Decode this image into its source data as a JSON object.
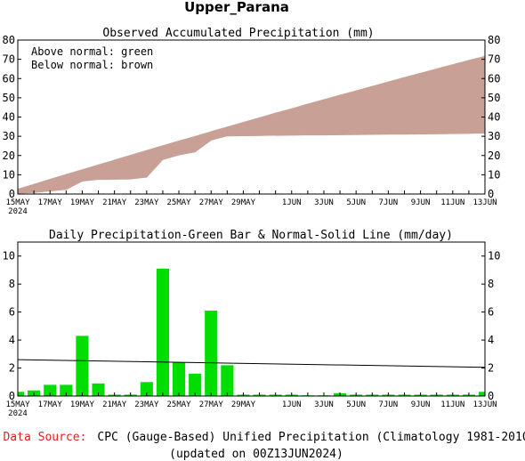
{
  "header": {
    "region_title": "Upper_Parana"
  },
  "chart_data": [
    {
      "type": "area",
      "title": "Observed Accumulated Precipitation (mm)",
      "annotations": [
        "Above normal: green",
        "Below normal: brown"
      ],
      "x": [
        "15MAY",
        "16MAY",
        "17MAY",
        "18MAY",
        "19MAY",
        "20MAY",
        "21MAY",
        "22MAY",
        "23MAY",
        "24MAY",
        "25MAY",
        "26MAY",
        "27MAY",
        "28MAY",
        "29MAY",
        "30MAY",
        "31MAY",
        "1JUN",
        "2JUN",
        "3JUN",
        "4JUN",
        "5JUN",
        "6JUN",
        "7JUN",
        "8JUN",
        "9JUN",
        "10JUN",
        "11JUN",
        "12JUN",
        "13JUN"
      ],
      "x_tick_labels": [
        "15MAY",
        "17MAY",
        "19MAY",
        "21MAY",
        "23MAY",
        "25MAY",
        "27MAY",
        "29MAY",
        "1JUN",
        "3JUN",
        "5JUN",
        "7JUN",
        "9JUN",
        "11JUN",
        "13JUN"
      ],
      "x_year_label": "2024",
      "ylim": [
        0,
        80
      ],
      "yticks": [
        0,
        10,
        20,
        30,
        40,
        50,
        60,
        70,
        80
      ],
      "legend_position": "top-left",
      "colors": {
        "above_normal": "#00cc00",
        "below_normal": "#c8a095"
      },
      "series": [
        {
          "name": "observed",
          "values": [
            0.3,
            0.7,
            1.5,
            2.3,
            6.6,
            7.5,
            7.6,
            7.7,
            8.7,
            17.8,
            20.2,
            21.8,
            27.9,
            30.1,
            30.2,
            30.3,
            30.4,
            30.5,
            30.6,
            30.6,
            30.7,
            30.8,
            30.9,
            31.0,
            31.0,
            31.1,
            31.2,
            31.3,
            31.4,
            31.6
          ]
        },
        {
          "name": "normal",
          "values": [
            2.6,
            5.1,
            7.7,
            10.2,
            12.7,
            15.2,
            17.7,
            20.2,
            22.7,
            25.2,
            27.6,
            30.0,
            32.5,
            34.9,
            37.3,
            39.7,
            42.1,
            44.4,
            46.8,
            49.1,
            51.4,
            53.7,
            56.0,
            58.3,
            60.6,
            62.8,
            65.1,
            67.3,
            69.5,
            71.6
          ]
        }
      ]
    },
    {
      "type": "bar",
      "title": "Daily Precipitation-Green Bar & Normal-Solid Line (mm/day)",
      "x": [
        "15MAY",
        "16MAY",
        "17MAY",
        "18MAY",
        "19MAY",
        "20MAY",
        "21MAY",
        "22MAY",
        "23MAY",
        "24MAY",
        "25MAY",
        "26MAY",
        "27MAY",
        "28MAY",
        "29MAY",
        "30MAY",
        "31MAY",
        "1JUN",
        "2JUN",
        "3JUN",
        "4JUN",
        "5JUN",
        "6JUN",
        "7JUN",
        "8JUN",
        "9JUN",
        "10JUN",
        "11JUN",
        "12JUN",
        "13JUN"
      ],
      "x_tick_labels": [
        "15MAY",
        "17MAY",
        "19MAY",
        "21MAY",
        "23MAY",
        "25MAY",
        "27MAY",
        "29MAY",
        "1JUN",
        "3JUN",
        "5JUN",
        "7JUN",
        "9JUN",
        "11JUN",
        "13JUN"
      ],
      "x_year_label": "2024",
      "ylim": [
        0,
        11
      ],
      "yticks": [
        0,
        2,
        4,
        6,
        8,
        10
      ],
      "colors": {
        "bars": "#00dd00",
        "normal_line": "#000000"
      },
      "series": [
        {
          "name": "daily",
          "values": [
            0.3,
            0.4,
            0.8,
            0.8,
            4.3,
            0.9,
            0.1,
            0.1,
            1.0,
            9.1,
            2.4,
            1.6,
            6.1,
            2.2,
            0.1,
            0.1,
            0.1,
            0.1,
            0.05,
            0.05,
            0.2,
            0.1,
            0.1,
            0.1,
            0.1,
            0.1,
            0.1,
            0.1,
            0.1,
            0.3
          ]
        },
        {
          "name": "normal",
          "start": 2.6,
          "end": 2.05
        }
      ]
    }
  ],
  "footer": {
    "source_label": "Data Source:",
    "source_text": "CPC (Gauge-Based) Unified Precipitation (Climatology 1981-2010)",
    "updated": "(updated on 00Z13JUN2024)",
    "source_color": "#dd2222"
  }
}
